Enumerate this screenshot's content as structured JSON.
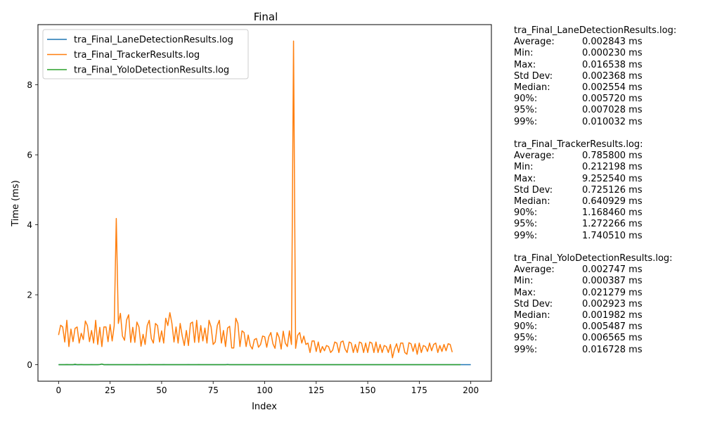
{
  "chart_data": {
    "type": "line",
    "title": "Final",
    "xlabel": "Index",
    "ylabel": "Time (ms)",
    "xlim": [
      -10,
      210
    ],
    "ylim": [
      -0.47,
      9.72
    ],
    "xticks": [
      0,
      25,
      50,
      75,
      100,
      125,
      150,
      175,
      200
    ],
    "yticks": [
      0,
      2,
      4,
      6,
      8
    ],
    "grid": false,
    "legend_position": "top-left",
    "series": [
      {
        "name": "tra_Final_LaneDetectionResults.log",
        "color": "#1f77b4",
        "x_start": 0,
        "values": [
          0.0028,
          0.0021,
          0.0035,
          0.0019,
          0.0042,
          0.0026,
          0.0031,
          0.0024,
          0.0057,
          0.0022,
          0.0037,
          0.0029,
          0.0018,
          0.0026,
          0.0033,
          0.0021,
          0.0044,
          0.0027,
          0.0023,
          0.003,
          0.0071,
          0.0165,
          0.0025,
          0.002,
          0.0039,
          0.0028,
          0.0024,
          0.0031,
          0.0019,
          0.0022,
          0.0036,
          0.0027,
          0.0025,
          0.0021,
          0.0033,
          0.0028,
          0.0019,
          0.0024,
          0.0041,
          0.0026,
          0.0022,
          0.003,
          0.0023,
          0.0027,
          0.0035,
          0.0021,
          0.0025,
          0.0032,
          0.002,
          0.0028,
          0.0024,
          0.0038,
          0.0022,
          0.0026,
          0.0029,
          0.0021,
          0.0033,
          0.0025,
          0.0023,
          0.0027,
          0.0031,
          0.002,
          0.0024,
          0.0052,
          0.0026,
          0.0022,
          0.0029,
          0.0023,
          0.0035,
          0.0027,
          0.0021,
          0.0025,
          0.003,
          0.0024,
          0.0019,
          0.0028,
          0.0022,
          0.0026,
          0.0033,
          0.0021,
          0.0025,
          0.0027,
          0.01,
          0.0023,
          0.0026,
          0.0022,
          0.003,
          0.0024,
          0.0028,
          0.0021,
          0.0025,
          0.0032,
          0.0019,
          0.0026,
          0.0023,
          0.0029,
          0.0022,
          0.0027,
          0.0024,
          0.0031,
          0.002,
          0.0025,
          0.0028,
          0.0023,
          0.0026,
          0.0021,
          0.003,
          0.0024,
          0.0027,
          0.0022,
          0.0025,
          0.0029,
          0.0023,
          0.0026,
          0.0021,
          0.0028,
          0.0024,
          0.0033,
          0.0022,
          0.0025,
          0.0027,
          0.0023,
          0.0026,
          0.003,
          0.0021,
          0.0024,
          0.0028,
          0.0022,
          0.0025,
          0.0027,
          0.0023,
          0.0026,
          0.0029,
          0.0021,
          0.0024,
          0.0031,
          0.0022,
          0.0026,
          0.0028,
          0.0023,
          0.0025,
          0.0027,
          0.0021,
          0.0024,
          0.003,
          0.0022,
          0.0026,
          0.0028,
          0.0023,
          0.0025,
          0.0029,
          0.0021,
          0.0024,
          0.0027,
          0.0022,
          0.0026,
          0.0031,
          0.0023,
          0.0025,
          0.0028,
          0.0021,
          0.0024,
          0.0027,
          0.0022,
          0.0026,
          0.0029,
          0.0023,
          0.0025,
          0.0028,
          0.0021,
          0.0024,
          0.003,
          0.0022,
          0.0026,
          0.0027,
          0.0023,
          0.0025,
          0.0029,
          0.0021,
          0.0024,
          0.0028,
          0.0022,
          0.0026,
          0.003,
          0.0023,
          0.0025,
          0.0027,
          0.0021,
          0.0024,
          0.0029,
          0.0022,
          0.0026,
          0.0028,
          0.0023,
          0.0025,
          0.0027,
          0.0021,
          0.0024,
          0.003,
          0.0022,
          0.0023
        ]
      },
      {
        "name": "tra_Final_TrackerResults.log",
        "color": "#ff7f0e",
        "x_start": 0,
        "values": [
          0.85,
          1.13,
          1.08,
          0.65,
          1.27,
          0.52,
          1.02,
          0.66,
          1.04,
          1.08,
          0.62,
          0.9,
          0.72,
          1.25,
          1.12,
          0.66,
          0.98,
          0.62,
          1.27,
          0.58,
          1.07,
          0.52,
          1.08,
          1.08,
          0.66,
          1.15,
          0.68,
          1.12,
          4.18,
          1.18,
          1.47,
          0.82,
          0.7,
          1.28,
          1.43,
          0.64,
          1.07,
          0.64,
          1.22,
          1.08,
          0.53,
          0.87,
          0.58,
          1.12,
          1.27,
          0.75,
          0.62,
          1.18,
          1.12,
          0.65,
          0.97,
          0.62,
          1.33,
          1.12,
          1.49,
          1.18,
          0.65,
          1.08,
          0.62,
          1.18,
          0.82,
          0.55,
          0.98,
          0.55,
          1.18,
          1.22,
          0.64,
          1.27,
          0.64,
          1.12,
          0.68,
          1.05,
          0.62,
          1.27,
          1.08,
          0.58,
          0.65,
          1.12,
          1.27,
          0.62,
          0.98,
          0.52,
          1.05,
          1.1,
          0.48,
          0.48,
          1.33,
          1.18,
          0.52,
          0.97,
          0.92,
          0.52,
          0.85,
          0.55,
          0.45,
          0.72,
          0.75,
          0.5,
          0.58,
          0.82,
          0.8,
          0.5,
          0.8,
          0.92,
          0.6,
          0.47,
          0.92,
          0.78,
          0.45,
          0.96,
          0.62,
          0.52,
          0.97,
          0.58,
          9.25,
          0.47,
          0.84,
          0.92,
          0.62,
          0.82,
          0.58,
          0.62,
          0.35,
          0.68,
          0.68,
          0.38,
          0.65,
          0.35,
          0.52,
          0.4,
          0.55,
          0.52,
          0.35,
          0.42,
          0.65,
          0.62,
          0.35,
          0.65,
          0.68,
          0.45,
          0.35,
          0.65,
          0.62,
          0.35,
          0.58,
          0.35,
          0.65,
          0.62,
          0.35,
          0.62,
          0.35,
          0.65,
          0.62,
          0.35,
          0.65,
          0.35,
          0.58,
          0.35,
          0.55,
          0.52,
          0.35,
          0.58,
          0.2,
          0.45,
          0.6,
          0.35,
          0.62,
          0.62,
          0.35,
          0.3,
          0.63,
          0.6,
          0.38,
          0.6,
          0.3,
          0.62,
          0.35,
          0.55,
          0.52,
          0.38,
          0.62,
          0.4,
          0.58,
          0.62,
          0.35,
          0.55,
          0.38,
          0.58,
          0.4,
          0.6,
          0.58,
          0.36
        ]
      },
      {
        "name": "tra_Final_YoloDetectionResults.log",
        "color": "#2ca02c",
        "x_start": 0,
        "values": [
          0.002,
          0.0016,
          0.0031,
          0.0018,
          0.0045,
          0.0022,
          0.0019,
          0.0027,
          0.0163,
          0.0021,
          0.0017,
          0.0072,
          0.0019,
          0.0023,
          0.0015,
          0.0028,
          0.002,
          0.0018,
          0.0033,
          0.0021,
          0.0055,
          0.0212,
          0.0019,
          0.0024,
          0.0017,
          0.0022,
          0.003,
          0.0018,
          0.0021,
          0.0016,
          0.0026,
          0.0019,
          0.0023,
          0.0017,
          0.002,
          0.0028,
          0.0018,
          0.0022,
          0.0016,
          0.0025,
          0.0019,
          0.0021,
          0.0017,
          0.0024,
          0.0062,
          0.0018,
          0.0022,
          0.0019,
          0.0016,
          0.0027,
          0.002,
          0.0018,
          0.0023,
          0.0017,
          0.0021,
          0.0019,
          0.0025,
          0.0016,
          0.0022,
          0.0018,
          0.002,
          0.0024,
          0.0017,
          0.0019,
          0.0021,
          0.0016,
          0.0023,
          0.0018,
          0.0055,
          0.002,
          0.0017,
          0.0022,
          0.0019,
          0.0021,
          0.0016,
          0.0024,
          0.0018,
          0.002,
          0.0017,
          0.0022,
          0.0019,
          0.0021,
          0.0016,
          0.0023,
          0.0018,
          0.002,
          0.0017,
          0.0022,
          0.0019,
          0.0021,
          0.0016,
          0.0024,
          0.0018,
          0.002,
          0.0017,
          0.0022,
          0.0019,
          0.0021,
          0.0016,
          0.0023,
          0.0018,
          0.002,
          0.0017,
          0.0022,
          0.0019,
          0.0021,
          0.0016,
          0.0024,
          0.0018,
          0.002,
          0.0017,
          0.0022,
          0.0019,
          0.0021,
          0.0016,
          0.0023,
          0.0018,
          0.002,
          0.0017,
          0.0022,
          0.0019,
          0.0021,
          0.0016,
          0.0024,
          0.0018,
          0.002,
          0.0017,
          0.0022,
          0.0019,
          0.0021,
          0.0016,
          0.0023,
          0.0018,
          0.002,
          0.0017,
          0.0022,
          0.0019,
          0.0021,
          0.0016,
          0.0024,
          0.0018,
          0.002,
          0.0017,
          0.0022,
          0.0019,
          0.0021,
          0.0016,
          0.0023,
          0.0018,
          0.002,
          0.0017,
          0.0022,
          0.0019,
          0.0021,
          0.0016,
          0.0024,
          0.0018,
          0.002,
          0.0017,
          0.0022,
          0.0019,
          0.0021,
          0.0016,
          0.0023,
          0.0018,
          0.002,
          0.0017,
          0.0022,
          0.0019,
          0.0021,
          0.0016,
          0.0024,
          0.0018,
          0.002,
          0.0017,
          0.0022,
          0.0019,
          0.0021,
          0.0016,
          0.0023,
          0.0018,
          0.002,
          0.0017,
          0.0022,
          0.0019,
          0.0021,
          0.0016,
          0.0024,
          0.0018,
          0.002,
          0.0017,
          0.0022,
          0.0019,
          0.0021,
          0.0016,
          0.0023
        ]
      }
    ]
  },
  "stats": [
    {
      "header": "tra_Final_LaneDetectionResults.log:",
      "rows": [
        {
          "label": "Average:",
          "value": "0.002843 ms"
        },
        {
          "label": "Min:",
          "value": "0.000230 ms"
        },
        {
          "label": "Max:",
          "value": "0.016538 ms"
        },
        {
          "label": "Std Dev:",
          "value": "0.002368 ms"
        },
        {
          "label": "Median:",
          "value": "0.002554 ms"
        },
        {
          "label": "90%:",
          "value": "0.005720 ms"
        },
        {
          "label": "95%:",
          "value": "0.007028 ms"
        },
        {
          "label": "99%:",
          "value": "0.010032 ms"
        }
      ]
    },
    {
      "header": "tra_Final_TrackerResults.log:",
      "rows": [
        {
          "label": "Average:",
          "value": "0.785800 ms"
        },
        {
          "label": "Min:",
          "value": "0.212198 ms"
        },
        {
          "label": "Max:",
          "value": "9.252540 ms"
        },
        {
          "label": "Std Dev:",
          "value": "0.725126 ms"
        },
        {
          "label": "Median:",
          "value": "0.640929 ms"
        },
        {
          "label": "90%:",
          "value": "1.168460 ms"
        },
        {
          "label": "95%:",
          "value": "1.272266 ms"
        },
        {
          "label": "99%:",
          "value": "1.740510 ms"
        }
      ]
    },
    {
      "header": "tra_Final_YoloDetectionResults.log:",
      "rows": [
        {
          "label": "Average:",
          "value": "0.002747 ms"
        },
        {
          "label": "Min:",
          "value": "0.000387 ms"
        },
        {
          "label": "Max:",
          "value": "0.021279 ms"
        },
        {
          "label": "Std Dev:",
          "value": "0.002923 ms"
        },
        {
          "label": "Median:",
          "value": "0.001982 ms"
        },
        {
          "label": "90%:",
          "value": "0.005487 ms"
        },
        {
          "label": "95%:",
          "value": "0.006565 ms"
        },
        {
          "label": "99%:",
          "value": "0.016728 ms"
        }
      ]
    }
  ]
}
